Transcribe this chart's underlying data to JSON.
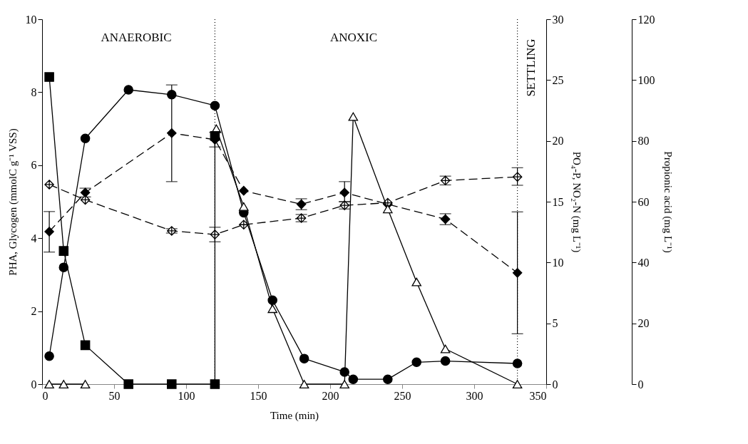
{
  "chart_data": {
    "type": "line",
    "xlabel": "Time (min)",
    "ylabel": "PHA, Glycogen (mmolC g⁻¹ VSS)",
    "y2label": "PO₄-P, NO₂-N (mg L⁻¹)",
    "y3label": "Propionic acid (mg L⁻¹)",
    "xlim": [
      0,
      350
    ],
    "xticks": [
      0,
      50,
      100,
      150,
      200,
      250,
      300,
      350
    ],
    "ylim": [
      0,
      10
    ],
    "yticks": [
      0,
      2,
      4,
      6,
      8,
      10
    ],
    "y2lim": [
      0,
      30
    ],
    "y2ticks": [
      0,
      5,
      10,
      15,
      20,
      25,
      30
    ],
    "y3lim": [
      0,
      120
    ],
    "y3ticks": [
      0,
      20,
      40,
      60,
      80,
      100,
      120
    ],
    "grid": false,
    "annotations": [
      "ANAEROBIC",
      "ANOXIC",
      "SETTLING"
    ],
    "ref_lines": [
      {
        "axis": "x",
        "value": 120,
        "line_style": "dotted",
        "color": "#000000"
      },
      {
        "axis": "x",
        "value": 330,
        "line_style": "dotted",
        "color": "#000000"
      }
    ],
    "series": [
      {
        "axis": "y3",
        "color": "#000000",
        "marker": "square",
        "line_style": "solid",
        "x": [
          5,
          15,
          30,
          60,
          90,
          120,
          120
        ],
        "values": [
          101,
          43.8,
          12.8,
          0,
          0,
          0,
          81.6
        ]
      },
      {
        "axis": "y2",
        "color": "#000000",
        "marker": "circle",
        "line_style": "solid",
        "x": [
          5,
          15,
          30,
          60,
          90,
          120,
          140,
          160,
          182,
          210,
          216,
          240,
          260,
          280,
          330
        ],
        "values": [
          2.3,
          9.6,
          20.2,
          24.2,
          23.8,
          22.9,
          14.1,
          6.9,
          2.1,
          1.0,
          0.4,
          0.4,
          1.8,
          1.9,
          1.7
        ]
      },
      {
        "axis": "y2",
        "color": "#000000",
        "marker": "triangle",
        "line_style": "solid",
        "x": [
          5,
          15,
          30,
          60,
          121,
          140,
          160,
          182,
          210,
          216,
          240,
          260,
          280,
          330
        ],
        "values": [
          0,
          0,
          0,
          null,
          21,
          14.6,
          6.2,
          0,
          0,
          22,
          14.4,
          8.4,
          2.9,
          0
        ]
      },
      {
        "color": "#000000",
        "marker": "diamond",
        "line_style": "dashed",
        "x": [
          5,
          30,
          90,
          120,
          140,
          180,
          210,
          240,
          280,
          330
        ],
        "values": [
          4.18,
          5.25,
          6.88,
          6.7,
          5.3,
          4.93,
          5.25,
          4.93,
          4.52,
          3.05
        ],
        "errors": [
          [
            3.62,
            4.73
          ],
          [
            5.13,
            5.37
          ],
          [
            5.55,
            8.2
          ],
          [
            6.5,
            6.9
          ],
          null,
          [
            4.78,
            5.08
          ],
          [
            5.0,
            5.55
          ],
          null,
          [
            4.37,
            4.67
          ],
          [
            1.38,
            4.72
          ]
        ]
      },
      {
        "color": "#000000",
        "marker": "cross",
        "line_style": "dashed",
        "x": [
          5,
          30,
          90,
          120,
          140,
          180,
          210,
          240,
          280,
          330
        ],
        "values": [
          5.47,
          5.05,
          4.2,
          4.1,
          4.37,
          4.55,
          4.9,
          4.97,
          5.58,
          5.68
        ],
        "errors": [
          null,
          null,
          [
            4.14,
            4.26
          ],
          [
            3.9,
            4.3
          ],
          null,
          [
            4.45,
            4.65
          ],
          [
            4.8,
            5.0
          ],
          null,
          [
            5.46,
            5.7
          ],
          [
            5.45,
            5.93
          ]
        ]
      }
    ]
  }
}
